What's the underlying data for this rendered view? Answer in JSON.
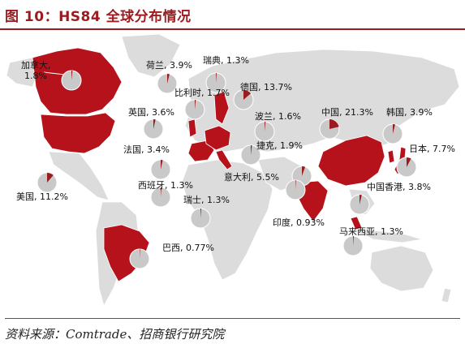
{
  "title": "图 10：HS84 全球分布情况",
  "source": "资料来源：Comtrade、招商银行研究院",
  "colors": {
    "accent": "#9b1b1f",
    "land": "#dcdcdc",
    "pie_bg": "#c9c9c9",
    "highlight": "#b5121b"
  },
  "map_data": {
    "type": "pie-map",
    "countries": [
      {
        "id": "canada",
        "label": "加拿大,",
        "label2": "1.8%",
        "share": 1.8
      },
      {
        "id": "netherlands",
        "label": "荷兰, 3.9%",
        "share": 3.9
      },
      {
        "id": "sweden",
        "label": "瑞典, 1.3%",
        "share": 1.3
      },
      {
        "id": "belgium",
        "label": "比利时, 1.7%",
        "share": 1.7
      },
      {
        "id": "germany",
        "label": "德国, 13.7%",
        "share": 13.7
      },
      {
        "id": "uk",
        "label": "英国, 3.6%",
        "share": 3.6
      },
      {
        "id": "poland",
        "label": "波兰, 1.6%",
        "share": 1.6
      },
      {
        "id": "china",
        "label": "中国, 21.3%",
        "share": 21.3
      },
      {
        "id": "korea",
        "label": "韩国, 3.9%",
        "share": 3.9
      },
      {
        "id": "france",
        "label": "法国, 3.4%",
        "share": 3.4
      },
      {
        "id": "czech",
        "label": "捷克, 1.9%",
        "share": 1.9
      },
      {
        "id": "japan",
        "label": "日本, 7.7%",
        "share": 7.7
      },
      {
        "id": "usa",
        "label": "美国, 11.2%",
        "share": 11.2
      },
      {
        "id": "spain",
        "label": "西班牙, 1.3%",
        "share": 1.3
      },
      {
        "id": "italy",
        "label": "意大利, 5.5%",
        "share": 5.5
      },
      {
        "id": "hongkong",
        "label": "中国香港, 3.8%",
        "share": 3.8
      },
      {
        "id": "switzerland",
        "label": "瑞士, 1.3%",
        "share": 1.3
      },
      {
        "id": "india",
        "label": "印度, 0.93%",
        "share": 0.93
      },
      {
        "id": "malaysia",
        "label": "马来西亚, 1.3%",
        "share": 1.3
      },
      {
        "id": "brazil",
        "label": "巴西, 0.77%",
        "share": 0.77
      }
    ]
  }
}
